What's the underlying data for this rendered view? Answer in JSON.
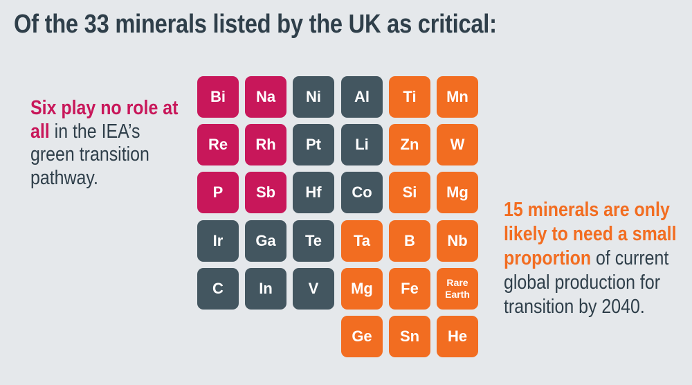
{
  "title": "Of the 33 minerals listed by the UK as critical:",
  "left_panel": {
    "highlight": "Six play no role at all",
    "rest": " in the IEA’s green transition pathway."
  },
  "right_panel": {
    "highlight": "15 minerals are only likely to need a small proportion",
    "rest": " of current global production for transition by 2040."
  },
  "colors": {
    "no_role": "#c8175a",
    "small_proportion": "#f26d21",
    "other": "#435660"
  },
  "tiles": [
    {
      "symbol": "Bi",
      "category": "no_role",
      "row": 0,
      "col": 0
    },
    {
      "symbol": "Na",
      "category": "no_role",
      "row": 0,
      "col": 1
    },
    {
      "symbol": "Ni",
      "category": "other",
      "row": 0,
      "col": 2
    },
    {
      "symbol": "Al",
      "category": "other",
      "row": 0,
      "col": 3
    },
    {
      "symbol": "Ti",
      "category": "small_proportion",
      "row": 0,
      "col": 4
    },
    {
      "symbol": "Mn",
      "category": "small_proportion",
      "row": 0,
      "col": 5
    },
    {
      "symbol": "Re",
      "category": "no_role",
      "row": 1,
      "col": 0
    },
    {
      "symbol": "Rh",
      "category": "no_role",
      "row": 1,
      "col": 1
    },
    {
      "symbol": "Pt",
      "category": "other",
      "row": 1,
      "col": 2
    },
    {
      "symbol": "Li",
      "category": "other",
      "row": 1,
      "col": 3
    },
    {
      "symbol": "Zn",
      "category": "small_proportion",
      "row": 1,
      "col": 4
    },
    {
      "symbol": "W",
      "category": "small_proportion",
      "row": 1,
      "col": 5
    },
    {
      "symbol": "P",
      "category": "no_role",
      "row": 2,
      "col": 0
    },
    {
      "symbol": "Sb",
      "category": "no_role",
      "row": 2,
      "col": 1
    },
    {
      "symbol": "Hf",
      "category": "other",
      "row": 2,
      "col": 2
    },
    {
      "symbol": "Co",
      "category": "other",
      "row": 2,
      "col": 3
    },
    {
      "symbol": "Si",
      "category": "small_proportion",
      "row": 2,
      "col": 4
    },
    {
      "symbol": "Mg",
      "category": "small_proportion",
      "row": 2,
      "col": 5
    },
    {
      "symbol": "Ir",
      "category": "other",
      "row": 3,
      "col": 0
    },
    {
      "symbol": "Ga",
      "category": "other",
      "row": 3,
      "col": 1
    },
    {
      "symbol": "Te",
      "category": "other",
      "row": 3,
      "col": 2
    },
    {
      "symbol": "Ta",
      "category": "small_proportion",
      "row": 3,
      "col": 3
    },
    {
      "symbol": "B",
      "category": "small_proportion",
      "row": 3,
      "col": 4
    },
    {
      "symbol": "Nb",
      "category": "small_proportion",
      "row": 3,
      "col": 5
    },
    {
      "symbol": "C",
      "category": "other",
      "row": 4,
      "col": 0
    },
    {
      "symbol": "In",
      "category": "other",
      "row": 4,
      "col": 1
    },
    {
      "symbol": "V",
      "category": "other",
      "row": 4,
      "col": 2
    },
    {
      "symbol": "Mg",
      "category": "small_proportion",
      "row": 4,
      "col": 3
    },
    {
      "symbol": "Fe",
      "category": "small_proportion",
      "row": 4,
      "col": 4
    },
    {
      "symbol": "Rare\nEarth",
      "category": "small_proportion",
      "row": 4,
      "col": 5
    },
    {
      "symbol": "Ge",
      "category": "small_proportion",
      "row": 5,
      "col": 3
    },
    {
      "symbol": "Sn",
      "category": "small_proportion",
      "row": 5,
      "col": 4
    },
    {
      "symbol": "He",
      "category": "small_proportion",
      "row": 5,
      "col": 5
    }
  ]
}
